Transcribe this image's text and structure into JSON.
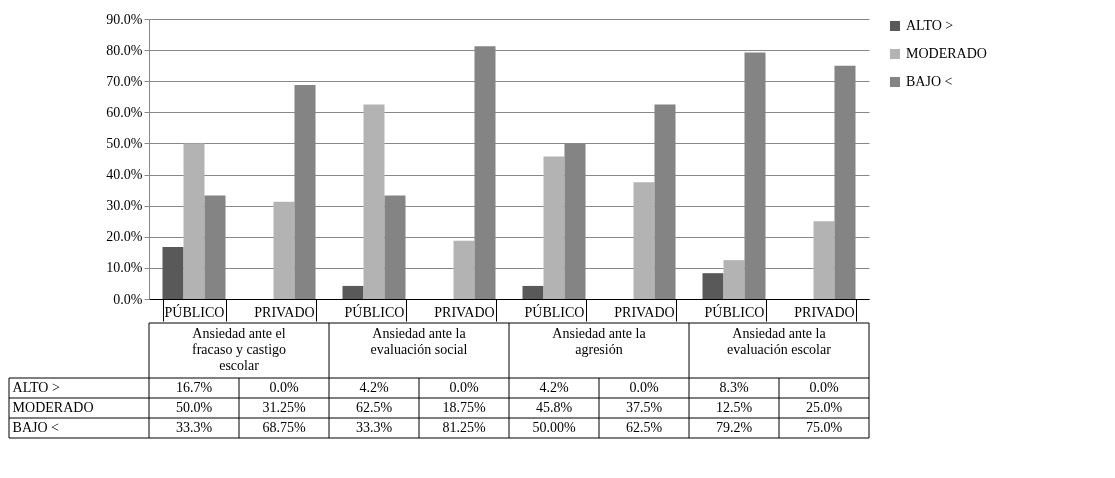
{
  "chart_data": {
    "type": "bar",
    "categories": [
      "PÚBLICO",
      "PRIVADO",
      "PÚBLICO",
      "PRIVADO",
      "PÚBLICO",
      "PRIVADO",
      "PÚBLICO",
      "PRIVADO"
    ],
    "annotations": [
      "Ansiedad ante el fracaso y castigo escolar",
      "Ansiedad ante la evaluación social",
      "Ansiedad ante la agresión",
      "Ansiedad ante la evaluación escolar"
    ],
    "series": [
      {
        "name": "ALTO >",
        "color": "#595959",
        "values": [
          16.7,
          0,
          4.2,
          0,
          4.2,
          0,
          8.3,
          0
        ],
        "value_labels": [
          "16.7%",
          "0.0%",
          "4.2%",
          "0.0%",
          "4.2%",
          "0.0%",
          "8.3%",
          "0.0%"
        ]
      },
      {
        "name": "MODERADO",
        "color": "#b3b3b3",
        "values": [
          50,
          31.25,
          62.5,
          18.75,
          45.8,
          37.5,
          12.5,
          25
        ],
        "value_labels": [
          "50.0%",
          "31.25%",
          "62.5%",
          "18.75%",
          "45.8%",
          "37.5%",
          "12.5%",
          "25.0%"
        ]
      },
      {
        "name": "BAJO <",
        "color": "#848484",
        "values": [
          33.3,
          68.75,
          33.3,
          81.25,
          50,
          62.5,
          79.2,
          75
        ],
        "value_labels": [
          "33.3%",
          "68.75%",
          "33.3%",
          "81.25%",
          "50.00%",
          "62.5%",
          "79.2%",
          "75.0%"
        ]
      }
    ],
    "ylim": [
      0,
      90
    ],
    "yticks": [
      {
        "value": 0,
        "label": "0.0%"
      },
      {
        "value": 10,
        "label": "10.0%"
      },
      {
        "value": 20,
        "label": "20.0%"
      },
      {
        "value": 30,
        "label": "30.0%"
      },
      {
        "value": 40,
        "label": "40.0%"
      },
      {
        "value": 50,
        "label": "50.0%"
      },
      {
        "value": 60,
        "label": "60.0%"
      },
      {
        "value": 70,
        "label": "70.0%"
      },
      {
        "value": 80,
        "label": "80.0%"
      },
      {
        "value": 90,
        "label": "90.0%"
      }
    ],
    "grid": "y",
    "legend": "right"
  }
}
